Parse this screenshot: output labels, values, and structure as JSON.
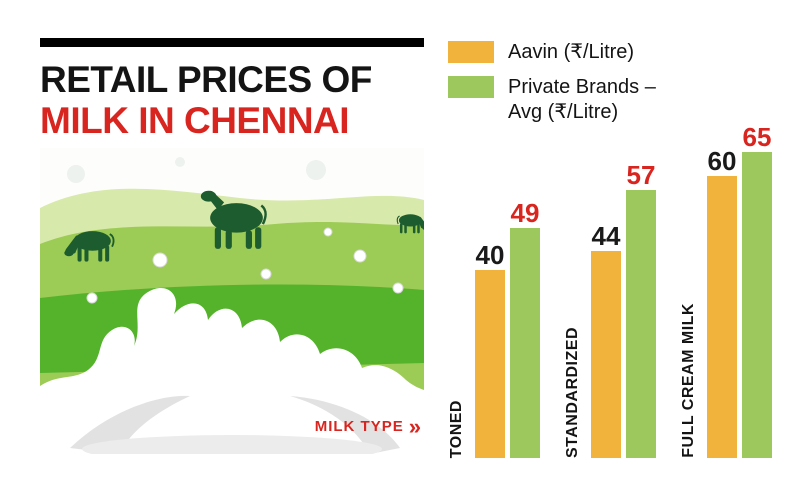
{
  "title": {
    "line1": "RETAIL PRICES OF",
    "line2": "MILK IN CHENNAI"
  },
  "milk_type": {
    "label": "MILK TYPE",
    "chevron": "»"
  },
  "legend": {
    "items": [
      {
        "label": "Aavin (₹/Litre)",
        "color": "#f2b33d"
      },
      {
        "label": "Private Brands – Avg (₹/Litre)",
        "color": "#9dc85e"
      }
    ]
  },
  "chart_data": {
    "type": "bar",
    "categories": [
      "TONED",
      "STANDARDIZED",
      "FULL CREAM MILK"
    ],
    "series": [
      {
        "name": "Aavin (₹/Litre)",
        "color": "#f2b33d",
        "values": [
          40,
          44,
          60
        ],
        "value_label_color": "#1a1a1a"
      },
      {
        "name": "Private Brands – Avg (₹/Litre)",
        "color": "#9dc85e",
        "values": [
          49,
          57,
          65
        ],
        "value_label_color": "#d9251f"
      }
    ],
    "title": "RETAIL PRICES OF MILK IN CHENNAI",
    "xlabel": "MILK TYPE",
    "ylabel": "",
    "ylim": [
      0,
      70
    ],
    "grid": false,
    "legend_position": "top"
  },
  "colors": {
    "accent_red": "#d9251f",
    "aavin_orange": "#f2b33d",
    "private_green": "#9dc85e",
    "cow_green": "#1d5c2e",
    "band_green": "#54b22b"
  }
}
